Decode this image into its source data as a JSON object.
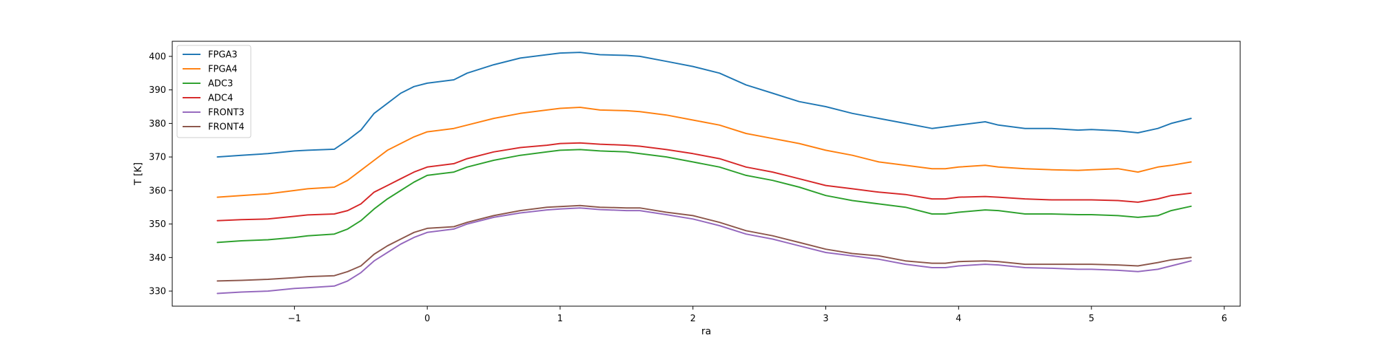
{
  "chart_data": {
    "type": "line",
    "title": "",
    "xlabel": "ra",
    "ylabel": "T [K]",
    "xlim": [
      -1.92,
      6.12
    ],
    "ylim": [
      325.5,
      404.5
    ],
    "x_ticks": [
      -1,
      0,
      1,
      2,
      3,
      4,
      5,
      6
    ],
    "y_ticks": [
      330,
      340,
      350,
      360,
      370,
      380,
      390,
      400
    ],
    "grid": false,
    "legend_placement": "top-left",
    "series": [
      {
        "name": "FPGA3",
        "color": "#1f77b4",
        "x": [
          -1.58,
          -1.4,
          -1.2,
          -1.0,
          -0.9,
          -0.7,
          -0.6,
          -0.5,
          -0.4,
          -0.3,
          -0.2,
          -0.1,
          0.0,
          0.2,
          0.3,
          0.5,
          0.7,
          0.9,
          1.0,
          1.15,
          1.3,
          1.5,
          1.6,
          1.8,
          2.0,
          2.2,
          2.4,
          2.6,
          2.8,
          3.0,
          3.2,
          3.4,
          3.6,
          3.8,
          3.9,
          4.0,
          4.2,
          4.3,
          4.5,
          4.7,
          4.9,
          5.0,
          5.2,
          5.35,
          5.5,
          5.6,
          5.75
        ],
        "y": [
          370,
          370.5,
          371,
          371.8,
          372,
          372.3,
          375,
          378,
          383,
          386,
          389,
          391,
          392,
          393,
          395,
          397.5,
          399.5,
          400.5,
          401,
          401.2,
          400.5,
          400.3,
          400,
          398.5,
          397,
          395,
          391.5,
          389,
          386.5,
          385,
          383,
          381.5,
          380,
          378.5,
          379,
          379.5,
          380.5,
          379.5,
          378.5,
          378.5,
          378,
          378.2,
          377.8,
          377.2,
          378.5,
          380,
          381.5
        ]
      },
      {
        "name": "FPGA4",
        "color": "#ff7f0e",
        "x": [
          -1.58,
          -1.4,
          -1.2,
          -1.0,
          -0.9,
          -0.7,
          -0.6,
          -0.5,
          -0.4,
          -0.3,
          -0.2,
          -0.1,
          0.0,
          0.2,
          0.3,
          0.5,
          0.7,
          0.9,
          1.0,
          1.15,
          1.3,
          1.5,
          1.6,
          1.8,
          2.0,
          2.2,
          2.4,
          2.6,
          2.8,
          3.0,
          3.2,
          3.4,
          3.6,
          3.8,
          3.9,
          4.0,
          4.2,
          4.3,
          4.5,
          4.7,
          4.9,
          5.0,
          5.2,
          5.35,
          5.5,
          5.6,
          5.75
        ],
        "y": [
          358,
          358.5,
          359,
          360,
          360.5,
          361,
          363,
          366,
          369,
          372,
          374,
          376,
          377.5,
          378.5,
          379.5,
          381.5,
          383,
          384,
          384.5,
          384.8,
          384,
          383.8,
          383.5,
          382.5,
          381,
          379.5,
          377,
          375.5,
          374,
          372,
          370.5,
          368.5,
          367.5,
          366.5,
          366.5,
          367,
          367.5,
          367,
          366.5,
          366.2,
          366,
          366.2,
          366.5,
          365.5,
          367,
          367.5,
          368.5
        ]
      },
      {
        "name": "ADC3",
        "color": "#2ca02c",
        "x": [
          -1.58,
          -1.4,
          -1.2,
          -1.0,
          -0.9,
          -0.7,
          -0.6,
          -0.5,
          -0.4,
          -0.3,
          -0.2,
          -0.1,
          0.0,
          0.2,
          0.3,
          0.5,
          0.7,
          0.9,
          1.0,
          1.15,
          1.3,
          1.5,
          1.6,
          1.8,
          2.0,
          2.2,
          2.4,
          2.6,
          2.8,
          3.0,
          3.2,
          3.4,
          3.6,
          3.8,
          3.9,
          4.0,
          4.2,
          4.3,
          4.5,
          4.7,
          4.9,
          5.0,
          5.2,
          5.35,
          5.5,
          5.6,
          5.75
        ],
        "y": [
          344.5,
          345,
          345.3,
          346,
          346.5,
          347,
          348.5,
          351,
          354.5,
          357.5,
          360,
          362.5,
          364.5,
          365.5,
          367,
          369,
          370.5,
          371.5,
          372,
          372.2,
          371.8,
          371.5,
          371,
          370,
          368.5,
          367,
          364.5,
          363,
          361,
          358.5,
          357,
          356,
          355,
          353,
          353,
          353.5,
          354.2,
          354,
          353,
          353,
          352.8,
          352.8,
          352.5,
          352,
          352.5,
          354,
          355.3
        ]
      },
      {
        "name": "ADC4",
        "color": "#d62728",
        "x": [
          -1.58,
          -1.4,
          -1.2,
          -1.0,
          -0.9,
          -0.7,
          -0.6,
          -0.5,
          -0.4,
          -0.3,
          -0.2,
          -0.1,
          0.0,
          0.2,
          0.3,
          0.5,
          0.7,
          0.9,
          1.0,
          1.15,
          1.3,
          1.5,
          1.6,
          1.8,
          2.0,
          2.2,
          2.4,
          2.6,
          2.8,
          3.0,
          3.2,
          3.4,
          3.6,
          3.8,
          3.9,
          4.0,
          4.2,
          4.3,
          4.5,
          4.7,
          4.9,
          5.0,
          5.2,
          5.35,
          5.5,
          5.6,
          5.75
        ],
        "y": [
          351,
          351.3,
          351.5,
          352.3,
          352.7,
          353,
          354,
          356,
          359.5,
          361.5,
          363.5,
          365.5,
          367,
          368,
          369.5,
          371.5,
          372.8,
          373.5,
          374,
          374.2,
          373.8,
          373.5,
          373.2,
          372.2,
          371,
          369.5,
          367,
          365.5,
          363.5,
          361.5,
          360.5,
          359.5,
          358.8,
          357.5,
          357.5,
          358,
          358.2,
          358,
          357.5,
          357.2,
          357.2,
          357.2,
          357,
          356.5,
          357.5,
          358.5,
          359.2
        ]
      },
      {
        "name": "FRONT3",
        "color": "#9467bd",
        "x": [
          -1.58,
          -1.4,
          -1.2,
          -1.0,
          -0.9,
          -0.7,
          -0.6,
          -0.5,
          -0.4,
          -0.3,
          -0.2,
          -0.1,
          0.0,
          0.2,
          0.3,
          0.5,
          0.7,
          0.9,
          1.0,
          1.15,
          1.3,
          1.5,
          1.6,
          1.8,
          2.0,
          2.2,
          2.4,
          2.6,
          2.8,
          3.0,
          3.2,
          3.4,
          3.6,
          3.8,
          3.9,
          4.0,
          4.2,
          4.3,
          4.5,
          4.7,
          4.9,
          5.0,
          5.2,
          5.35,
          5.5,
          5.6,
          5.75
        ],
        "y": [
          329.3,
          329.7,
          330,
          330.8,
          331,
          331.5,
          333,
          335.5,
          339,
          341.5,
          344,
          346,
          347.5,
          348.5,
          350,
          352,
          353.3,
          354.2,
          354.5,
          354.8,
          354.3,
          354,
          354,
          352.8,
          351.5,
          349.5,
          347,
          345.5,
          343.5,
          341.5,
          340.5,
          339.5,
          338,
          337,
          337,
          337.5,
          338,
          337.8,
          337,
          336.8,
          336.5,
          336.5,
          336.2,
          335.8,
          336.5,
          337.5,
          339
        ]
      },
      {
        "name": "FRONT4",
        "color": "#8c564b",
        "x": [
          -1.58,
          -1.4,
          -1.2,
          -1.0,
          -0.9,
          -0.7,
          -0.6,
          -0.5,
          -0.4,
          -0.3,
          -0.2,
          -0.1,
          0.0,
          0.2,
          0.3,
          0.5,
          0.7,
          0.9,
          1.0,
          1.15,
          1.3,
          1.5,
          1.6,
          1.8,
          2.0,
          2.2,
          2.4,
          2.6,
          2.8,
          3.0,
          3.2,
          3.4,
          3.6,
          3.8,
          3.9,
          4.0,
          4.2,
          4.3,
          4.5,
          4.7,
          4.9,
          5.0,
          5.2,
          5.35,
          5.5,
          5.6,
          5.75
        ],
        "y": [
          333,
          333.2,
          333.5,
          334,
          334.3,
          334.6,
          335.8,
          337.5,
          341,
          343.5,
          345.5,
          347.5,
          348.7,
          349.2,
          350.5,
          352.5,
          354,
          355,
          355.2,
          355.5,
          355,
          354.8,
          354.8,
          353.5,
          352.5,
          350.5,
          348,
          346.5,
          344.5,
          342.5,
          341.2,
          340.5,
          339,
          338.3,
          338.3,
          338.8,
          339,
          338.8,
          338,
          338,
          338,
          338,
          337.8,
          337.5,
          338.5,
          339.3,
          340
        ]
      }
    ]
  }
}
